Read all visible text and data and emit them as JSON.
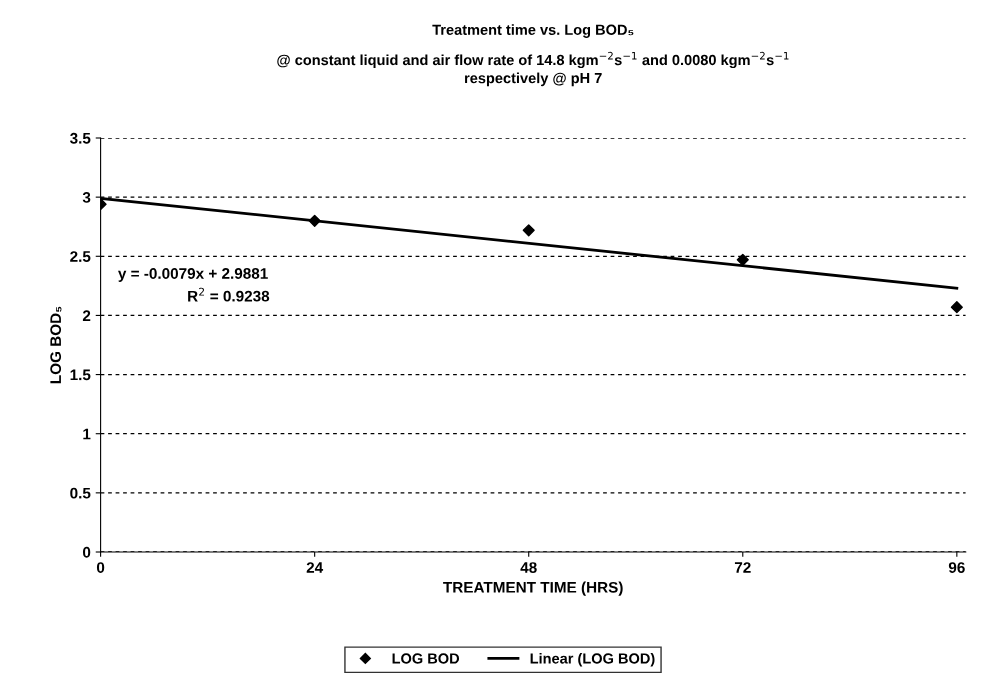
{
  "chart_data": {
    "type": "scatter",
    "title": "Treatment time vs. Log BOD₅",
    "subtitle": "@ constant liquid and air flow rate of 14.8 kgm$^{−2}$s$^{−1}$ and 0.0080 kgm$^{−2}$s$^{−1}$\nrespectively @ pH 7",
    "xlabel": "TREATMENT TIME (HRS)",
    "ylabel": "LOG BOD₅",
    "series": [
      {
        "name": "LOG BOD",
        "color": "#000000",
        "marker": "diamond",
        "x": [
          0,
          24,
          48,
          72,
          96
        ],
        "values": [
          2.94,
          2.8,
          2.72,
          2.47,
          2.07
        ]
      },
      {
        "name": "Linear (LOG BOD)",
        "type": "line",
        "color": "#000000",
        "marker": "none",
        "line_style": "solid",
        "x": [
          0,
          96
        ],
        "values": [
          2.99,
          2.23
        ]
      }
    ],
    "annotations": [
      "y = -0.0079x + 2.9881",
      "R$^{2}$ = 0.9238"
    ],
    "xlim": [
      0,
      97
    ],
    "xticks": [
      0,
      24,
      48,
      72,
      96
    ],
    "ylim": [
      0,
      3.5
    ],
    "yticks": [
      0,
      0.5,
      1,
      1.5,
      2,
      2.5,
      3,
      3.5
    ],
    "grid": "y",
    "legend": "bottom"
  }
}
